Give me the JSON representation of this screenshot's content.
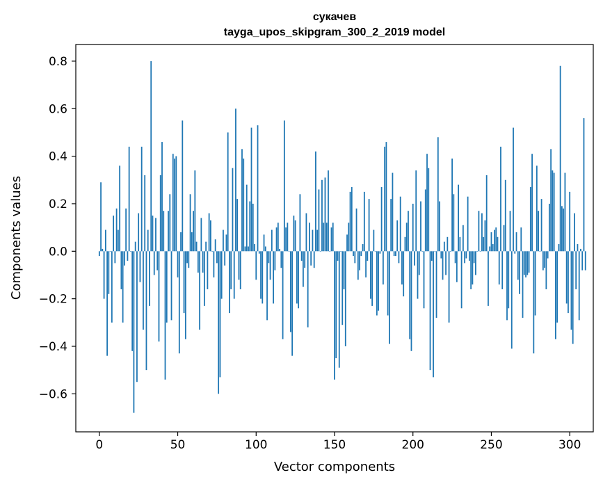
{
  "chart_data": {
    "type": "bar",
    "title": "сукачев",
    "subtitle": "tayga_upos_skipgram_300_2_2019 model",
    "xlabel": "Vector components",
    "ylabel": "Components values",
    "xlim": [
      -15,
      315
    ],
    "ylim": [
      -0.76,
      0.87
    ],
    "xticks": [
      0,
      50,
      100,
      150,
      200,
      250,
      300
    ],
    "yticks": [
      -0.6,
      -0.4,
      -0.2,
      0.0,
      0.2,
      0.4,
      0.6,
      0.8
    ],
    "ytick_labels": [
      "−0.6",
      "−0.4",
      "−0.2",
      "0.0",
      "0.2",
      "0.4",
      "0.6",
      "0.8"
    ],
    "xtick_labels": [
      "0",
      "50",
      "100",
      "150",
      "200",
      "250",
      "300"
    ],
    "bar_color": "#1f77b4",
    "values": [
      -0.02,
      0.29,
      0.01,
      -0.2,
      0.09,
      -0.44,
      -0.18,
      0.0,
      -0.3,
      0.15,
      -0.05,
      0.18,
      0.09,
      0.36,
      -0.16,
      -0.3,
      -0.06,
      0.18,
      -0.04,
      0.44,
      0.0,
      -0.42,
      -0.68,
      0.04,
      -0.55,
      0.16,
      -0.13,
      0.44,
      -0.33,
      0.32,
      -0.5,
      0.09,
      -0.23,
      0.8,
      0.15,
      -0.1,
      0.14,
      -0.08,
      -0.38,
      0.32,
      0.46,
      0.17,
      -0.54,
      -0.3,
      0.17,
      0.24,
      -0.29,
      0.41,
      0.39,
      0.4,
      -0.11,
      -0.43,
      0.08,
      0.55,
      -0.26,
      -0.37,
      -0.05,
      -0.07,
      0.24,
      0.08,
      0.17,
      0.34,
      0.04,
      -0.09,
      -0.33,
      0.14,
      -0.09,
      -0.23,
      0.04,
      -0.16,
      0.16,
      0.13,
      0.0,
      -0.11,
      0.05,
      -0.05,
      -0.6,
      -0.53,
      -0.2,
      0.09,
      -0.06,
      0.07,
      0.5,
      -0.26,
      -0.16,
      0.35,
      -0.2,
      0.6,
      0.22,
      -0.12,
      -0.16,
      0.43,
      0.39,
      0.02,
      0.28,
      0.02,
      0.21,
      0.52,
      0.2,
      0.03,
      -0.12,
      0.53,
      -0.01,
      -0.2,
      -0.22,
      0.07,
      0.02,
      -0.29,
      -0.05,
      -0.12,
      0.09,
      -0.22,
      -0.08,
      0.1,
      0.12,
      0.01,
      -0.07,
      -0.37,
      0.55,
      0.1,
      0.12,
      0.0,
      -0.34,
      -0.44,
      0.15,
      0.13,
      -0.22,
      -0.24,
      0.24,
      -0.04,
      -0.15,
      -0.07,
      0.16,
      -0.32,
      0.12,
      -0.06,
      0.09,
      -0.07,
      0.42,
      0.09,
      0.26,
      0.0,
      0.3,
      0.12,
      0.31,
      0.12,
      0.34,
      0.0,
      0.1,
      0.12,
      -0.54,
      -0.45,
      -0.04,
      -0.49,
      0.0,
      -0.31,
      -0.16,
      -0.4,
      0.07,
      0.12,
      0.25,
      0.27,
      -0.02,
      -0.05,
      0.18,
      -0.12,
      -0.08,
      -0.02,
      0.03,
      0.25,
      -0.11,
      -0.04,
      0.22,
      -0.2,
      -0.23,
      0.09,
      0.0,
      -0.27,
      -0.25,
      -0.01,
      0.27,
      -0.14,
      0.44,
      0.46,
      -0.27,
      -0.39,
      0.22,
      0.33,
      -0.02,
      -0.02,
      0.13,
      -0.05,
      0.23,
      -0.14,
      -0.19,
      0.06,
      0.12,
      0.17,
      -0.37,
      -0.42,
      0.2,
      -0.06,
      0.34,
      -0.2,
      -0.1,
      0.21,
      0.0,
      -0.24,
      0.26,
      0.41,
      0.35,
      -0.5,
      -0.04,
      -0.53,
      0.0,
      -0.28,
      0.48,
      0.21,
      -0.03,
      -0.12,
      0.04,
      -0.1,
      0.06,
      -0.3,
      0.0,
      0.39,
      0.24,
      -0.05,
      -0.13,
      0.28,
      0.06,
      -0.24,
      0.11,
      -0.05,
      -0.03,
      0.23,
      -0.04,
      -0.16,
      -0.14,
      -0.05,
      -0.1,
      0.0,
      0.17,
      0.0,
      0.16,
      0.06,
      0.13,
      0.32,
      -0.23,
      0.02,
      0.08,
      0.03,
      0.09,
      0.1,
      0.06,
      -0.14,
      0.44,
      -0.16,
      0.11,
      0.3,
      -0.29,
      -0.24,
      0.17,
      -0.41,
      0.52,
      -0.01,
      0.08,
      -0.12,
      -0.18,
      0.1,
      -0.28,
      -0.1,
      -0.11,
      -0.1,
      -0.09,
      0.27,
      0.41,
      -0.43,
      -0.27,
      0.36,
      0.17,
      0.0,
      0.22,
      -0.08,
      -0.07,
      -0.16,
      -0.03,
      0.2,
      0.43,
      0.34,
      0.33,
      -0.37,
      -0.3,
      0.03,
      0.78,
      0.19,
      0.18,
      0.33,
      -0.22,
      -0.26,
      0.25,
      -0.33,
      -0.39,
      0.16,
      -0.16,
      0.03,
      -0.29,
      0.01,
      -0.08,
      0.56,
      -0.08
    ]
  }
}
